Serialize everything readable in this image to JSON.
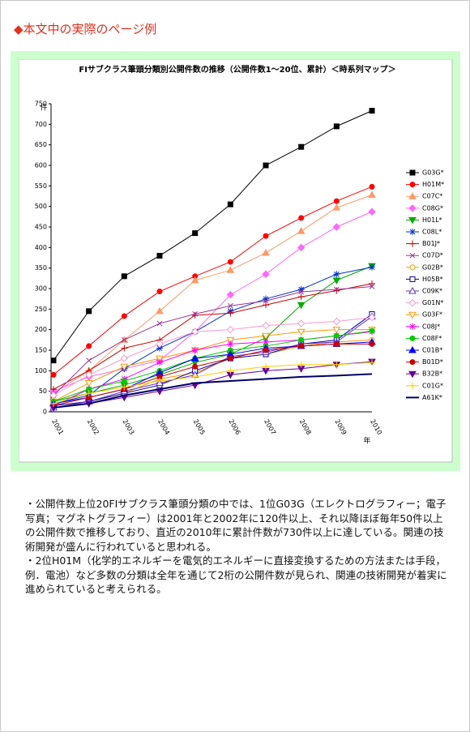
{
  "heading": "◆本文中の実際のページ例",
  "chart_data": {
    "type": "line",
    "title": "FIサブクラス筆頭分類別公開件数の推移（公開件数1～20位、累計）＜時系列マップ＞",
    "y_label": "件",
    "x_label": "年",
    "categories": [
      "2001",
      "2002",
      "2003",
      "2004",
      "2005",
      "2006",
      "2007",
      "2008",
      "2009",
      "2010"
    ],
    "ylim": [
      0,
      750
    ],
    "yticks": [
      0,
      50,
      100,
      150,
      200,
      250,
      300,
      350,
      400,
      450,
      500,
      550,
      600,
      650,
      700,
      750
    ],
    "grid": false,
    "series": [
      {
        "name": "G03G*",
        "color": "#000000",
        "marker": "square",
        "values": [
          125,
          245,
          330,
          380,
          435,
          505,
          600,
          645,
          695,
          733
        ]
      },
      {
        "name": "H01M*",
        "color": "#ff0000",
        "marker": "circle",
        "values": [
          90,
          160,
          233,
          293,
          330,
          365,
          428,
          472,
          513,
          548
        ]
      },
      {
        "name": "C07C*",
        "color": "#ff9966",
        "marker": "triangle",
        "values": [
          45,
          100,
          175,
          245,
          320,
          345,
          387,
          440,
          497,
          528
        ]
      },
      {
        "name": "C08G*",
        "color": "#ff66ff",
        "marker": "diamond",
        "values": [
          50,
          85,
          105,
          125,
          195,
          285,
          335,
          400,
          450,
          487
        ]
      },
      {
        "name": "H01L*",
        "color": "#00aa00",
        "marker": "triangle-down",
        "values": [
          25,
          45,
          65,
          90,
          120,
          140,
          180,
          260,
          320,
          355
        ]
      },
      {
        "name": "C08L*",
        "color": "#0033cc",
        "marker": "star",
        "values": [
          20,
          40,
          105,
          155,
          195,
          245,
          275,
          298,
          335,
          352
        ]
      },
      {
        "name": "B01J*",
        "color": "#cc0000",
        "marker": "plus",
        "values": [
          55,
          100,
          155,
          175,
          235,
          240,
          260,
          280,
          295,
          312
        ]
      },
      {
        "name": "C07D*",
        "color": "#993399",
        "marker": "x",
        "values": [
          40,
          125,
          175,
          215,
          238,
          258,
          270,
          292,
          298,
          305
        ]
      },
      {
        "name": "G02B*",
        "color": "#ff9900",
        "marker": "circle-open",
        "values": [
          10,
          25,
          45,
          80,
          95,
          130,
          140,
          160,
          170,
          175
        ]
      },
      {
        "name": "H05B*",
        "color": "#000099",
        "marker": "square-open",
        "values": [
          15,
          25,
          45,
          65,
          100,
          130,
          140,
          165,
          175,
          238
        ]
      },
      {
        "name": "C09K*",
        "color": "#6633cc",
        "marker": "triangle-open",
        "values": [
          10,
          25,
          50,
          70,
          90,
          135,
          145,
          165,
          170,
          232
        ]
      },
      {
        "name": "G01N*",
        "color": "#ff99cc",
        "marker": "diamond-open",
        "values": [
          40,
          90,
          130,
          165,
          195,
          200,
          210,
          215,
          220,
          230
        ]
      },
      {
        "name": "G03F*",
        "color": "#ff9900",
        "marker": "triangle-down-open",
        "values": [
          25,
          70,
          110,
          130,
          150,
          175,
          185,
          195,
          200,
          200
        ]
      },
      {
        "name": "C08J*",
        "color": "#ff00ff",
        "marker": "star",
        "values": [
          15,
          55,
          80,
          120,
          150,
          165,
          170,
          175,
          185,
          195
        ]
      },
      {
        "name": "C08F*",
        "color": "#00cc00",
        "marker": "circle",
        "values": [
          25,
          55,
          75,
          100,
          130,
          150,
          160,
          175,
          185,
          197
        ]
      },
      {
        "name": "C01B*",
        "color": "#0000ff",
        "marker": "triangle",
        "values": [
          20,
          35,
          55,
          95,
          130,
          140,
          155,
          160,
          165,
          170
        ]
      },
      {
        "name": "B01D*",
        "color": "#cc0000",
        "marker": "circle",
        "values": [
          15,
          35,
          55,
          85,
          110,
          130,
          150,
          160,
          165,
          165
        ]
      },
      {
        "name": "B32B*",
        "color": "#660099",
        "marker": "triangle-down",
        "values": [
          10,
          20,
          35,
          50,
          65,
          90,
          100,
          105,
          115,
          122
        ]
      },
      {
        "name": "C01G*",
        "color": "#ffcc00",
        "marker": "plus",
        "values": [
          20,
          45,
          60,
          75,
          85,
          100,
          110,
          115,
          115,
          120
        ]
      },
      {
        "name": "A61K*",
        "color": "#000066",
        "marker": "none",
        "values": [
          10,
          20,
          40,
          55,
          70,
          75,
          80,
          85,
          88,
          92
        ]
      }
    ]
  },
  "body": {
    "paragraphs": [
      "・公開件数上位20FIサブクラス筆頭分類の中では、1位G03G（エレクトログラフィー；電子写真；マグネトグラフィー）は2001年と2002年に120件以上、それ以降ほぼ毎年50件以上の公開件数で推移しており、直近の2010年に累計件数が730件以上に達している。関連の技術開発が盛んに行われていると思われる。",
      "・2位H01M（化学的エネルギーを電気的エネルギーに直接変換するための方法または手段，例．電池）など多数の分類は全年を通じて2桁の公開件数が見られ、関連の技術開発が着実に進められていると考えられる。"
    ]
  }
}
